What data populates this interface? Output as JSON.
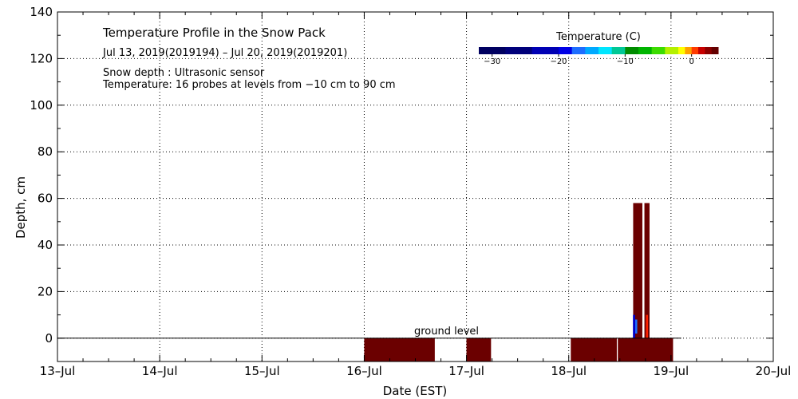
{
  "chart_data": {
    "type": "heatmap",
    "title": "Temperature Profile in the Snow Pack",
    "subtitle": "Jul 13, 2019(2019194) – Jul 20, 2019(2019201)",
    "info_lines": [
      "Snow depth : Ultrasonic sensor",
      "Temperature: 16 probes at levels from −10 cm to 90 cm"
    ],
    "xlabel": "Date (EST)",
    "ylabel": "Depth, cm",
    "x_ticks": [
      {
        "label": "13–Jul",
        "day": 0
      },
      {
        "label": "14–Jul",
        "day": 1
      },
      {
        "label": "15–Jul",
        "day": 2
      },
      {
        "label": "16–Jul",
        "day": 3
      },
      {
        "label": "17–Jul",
        "day": 4
      },
      {
        "label": "18–Jul",
        "day": 5
      },
      {
        "label": "19–Jul",
        "day": 6
      },
      {
        "label": "20–Jul",
        "day": 7
      }
    ],
    "x_range_days": [
      0,
      7
    ],
    "ylim": [
      -10,
      140
    ],
    "y_ticks": [
      0,
      20,
      40,
      60,
      80,
      100,
      120,
      140
    ],
    "grid": true,
    "ground_level_label": "ground level",
    "ground_level_value": 0,
    "ground_line_end_day": 6.1,
    "colorbar": {
      "title": "Temperature (C)",
      "min": -32,
      "max": 4,
      "tick_values": [
        -30,
        -20,
        -10,
        0
      ],
      "tick_labels": [
        "−30",
        "−20",
        "−10",
        "0"
      ],
      "bins": [
        {
          "from": -32,
          "to": -28,
          "color": "#000060"
        },
        {
          "from": -28,
          "to": -24,
          "color": "#00007a"
        },
        {
          "from": -24,
          "to": -20,
          "color": "#0000b4"
        },
        {
          "from": -20,
          "to": -18,
          "color": "#0000e6"
        },
        {
          "from": -18,
          "to": -16,
          "color": "#1e6eff"
        },
        {
          "from": -16,
          "to": -14,
          "color": "#00aaff"
        },
        {
          "from": -14,
          "to": -12,
          "color": "#00e6ff"
        },
        {
          "from": -12,
          "to": -10,
          "color": "#00c896"
        },
        {
          "from": -10,
          "to": -8,
          "color": "#008c00"
        },
        {
          "from": -8,
          "to": -6,
          "color": "#00b400"
        },
        {
          "from": -6,
          "to": -4,
          "color": "#3cdc00"
        },
        {
          "from": -4,
          "to": -2,
          "color": "#b4f000"
        },
        {
          "from": -2,
          "to": -1,
          "color": "#ffff00"
        },
        {
          "from": -1,
          "to": 0,
          "color": "#ffa000"
        },
        {
          "from": 0,
          "to": 1,
          "color": "#ff3c00"
        },
        {
          "from": 1,
          "to": 2,
          "color": "#c80000"
        },
        {
          "from": 2,
          "to": 3,
          "color": "#8c0000"
        },
        {
          "from": 3,
          "to": 4,
          "color": "#640000"
        }
      ]
    },
    "temperature_blocks": [
      {
        "start_day": 3.0,
        "end_day": 3.69,
        "bottom": -10,
        "top": 0,
        "color": "#6b0000"
      },
      {
        "start_day": 4.0,
        "end_day": 4.24,
        "bottom": -10,
        "top": 0,
        "color": "#6b0000"
      },
      {
        "start_day": 5.02,
        "end_day": 5.47,
        "bottom": -10,
        "top": 0,
        "color": "#6b0000"
      },
      {
        "start_day": 5.48,
        "end_day": 6.02,
        "bottom": -10,
        "top": 0,
        "color": "#6b0000"
      },
      {
        "start_day": 5.63,
        "end_day": 5.72,
        "bottom": 0,
        "top": 58,
        "color": "#6b0000"
      },
      {
        "start_day": 5.74,
        "end_day": 5.79,
        "bottom": 0,
        "top": 58,
        "color": "#6b0000"
      },
      {
        "start_day": 5.628,
        "end_day": 5.65,
        "bottom": 0,
        "top": 10,
        "color": "#0000c8"
      },
      {
        "start_day": 5.65,
        "end_day": 5.67,
        "bottom": 2,
        "top": 8,
        "color": "#1e6eff"
      },
      {
        "start_day": 5.755,
        "end_day": 5.775,
        "bottom": 0,
        "top": 10,
        "color": "#ff2000"
      }
    ]
  }
}
